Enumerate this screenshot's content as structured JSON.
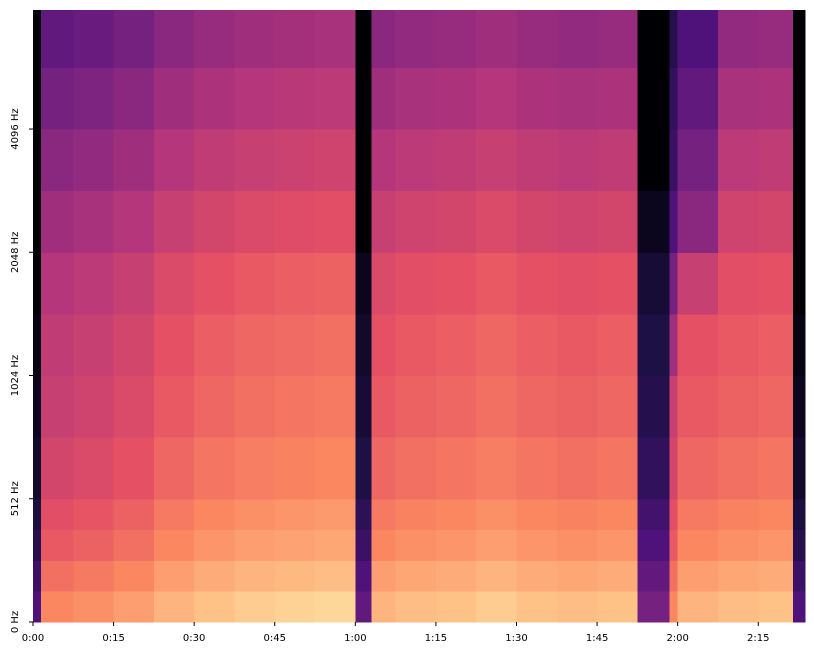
{
  "chart_data": {
    "type": "spectrogram",
    "colormap": "magma",
    "yscale": "symlog",
    "linthresh": 512,
    "xlim": [
      0,
      143.7
    ],
    "ylim": [
      0,
      8000
    ],
    "xticks": [
      {
        "value": 0,
        "label": "0:00"
      },
      {
        "value": 15,
        "label": "0:15"
      },
      {
        "value": 30,
        "label": "0:30"
      },
      {
        "value": 45,
        "label": "0:45"
      },
      {
        "value": 60,
        "label": "1:00"
      },
      {
        "value": 75,
        "label": "1:15"
      },
      {
        "value": 90,
        "label": "1:30"
      },
      {
        "value": 105,
        "label": "1:45"
      },
      {
        "value": 120,
        "label": "2:00"
      },
      {
        "value": 135,
        "label": "2:15"
      }
    ],
    "yticks": [
      {
        "value": 0,
        "label": "0 Hz"
      },
      {
        "value": 512,
        "label": "512 Hz"
      },
      {
        "value": 1024,
        "label": "1024 Hz"
      },
      {
        "value": 2048,
        "label": "2048 Hz"
      },
      {
        "value": 4096,
        "label": "4096 Hz"
      }
    ],
    "time_bins": [
      0,
      1.5,
      7.5,
      15,
      22.5,
      30,
      37.5,
      45,
      52.5,
      60,
      63,
      67.5,
      75,
      82.5,
      90,
      97.5,
      105,
      112.5,
      118.5,
      120,
      127.5,
      135,
      141.5,
      143.7
    ],
    "freq_bins": [
      0,
      128,
      256,
      384,
      512,
      724,
      1024,
      1448,
      2048,
      2896,
      4096,
      5793,
      8000
    ],
    "values": [
      [
        0.25,
        0.75,
        0.77,
        0.8,
        0.85,
        0.88,
        0.9,
        0.91,
        0.92,
        0.3,
        0.85,
        0.87,
        0.88,
        0.9,
        0.88,
        0.87,
        0.88,
        0.35,
        0.75,
        0.85,
        0.87,
        0.88,
        0.25
      ],
      [
        0.2,
        0.7,
        0.72,
        0.75,
        0.8,
        0.83,
        0.85,
        0.86,
        0.87,
        0.25,
        0.8,
        0.82,
        0.83,
        0.85,
        0.83,
        0.82,
        0.83,
        0.3,
        0.7,
        0.8,
        0.82,
        0.83,
        0.2
      ],
      [
        0.15,
        0.65,
        0.67,
        0.7,
        0.75,
        0.78,
        0.8,
        0.81,
        0.82,
        0.2,
        0.75,
        0.77,
        0.78,
        0.8,
        0.78,
        0.77,
        0.78,
        0.25,
        0.65,
        0.75,
        0.77,
        0.78,
        0.15
      ],
      [
        0.12,
        0.62,
        0.64,
        0.67,
        0.72,
        0.75,
        0.77,
        0.78,
        0.79,
        0.17,
        0.72,
        0.74,
        0.75,
        0.77,
        0.75,
        0.74,
        0.75,
        0.22,
        0.62,
        0.72,
        0.74,
        0.75,
        0.12
      ],
      [
        0.08,
        0.58,
        0.6,
        0.63,
        0.68,
        0.71,
        0.73,
        0.74,
        0.75,
        0.13,
        0.68,
        0.7,
        0.71,
        0.73,
        0.71,
        0.7,
        0.71,
        0.18,
        0.58,
        0.68,
        0.7,
        0.71,
        0.08
      ],
      [
        0.05,
        0.55,
        0.57,
        0.6,
        0.65,
        0.68,
        0.7,
        0.71,
        0.72,
        0.1,
        0.65,
        0.67,
        0.68,
        0.7,
        0.68,
        0.67,
        0.68,
        0.15,
        0.55,
        0.65,
        0.67,
        0.68,
        0.05
      ],
      [
        0.03,
        0.53,
        0.55,
        0.58,
        0.63,
        0.66,
        0.68,
        0.69,
        0.7,
        0.08,
        0.63,
        0.65,
        0.66,
        0.68,
        0.66,
        0.65,
        0.66,
        0.13,
        0.45,
        0.63,
        0.65,
        0.66,
        0.03
      ],
      [
        0,
        0.5,
        0.52,
        0.55,
        0.6,
        0.63,
        0.65,
        0.66,
        0.67,
        0.05,
        0.6,
        0.62,
        0.63,
        0.65,
        0.63,
        0.62,
        0.63,
        0.1,
        0.35,
        0.55,
        0.62,
        0.63,
        0
      ],
      [
        0,
        0.45,
        0.47,
        0.5,
        0.55,
        0.58,
        0.6,
        0.61,
        0.62,
        0,
        0.55,
        0.57,
        0.58,
        0.6,
        0.58,
        0.57,
        0.58,
        0.05,
        0.25,
        0.4,
        0.57,
        0.58,
        0
      ],
      [
        0,
        0.4,
        0.42,
        0.45,
        0.5,
        0.53,
        0.55,
        0.56,
        0.57,
        0,
        0.5,
        0.52,
        0.53,
        0.55,
        0.53,
        0.52,
        0.53,
        0,
        0.2,
        0.35,
        0.52,
        0.53,
        0
      ],
      [
        0,
        0.35,
        0.37,
        0.4,
        0.45,
        0.48,
        0.5,
        0.51,
        0.52,
        0,
        0.45,
        0.47,
        0.48,
        0.5,
        0.48,
        0.47,
        0.48,
        0,
        0.18,
        0.3,
        0.47,
        0.48,
        0
      ],
      [
        0,
        0.3,
        0.32,
        0.35,
        0.4,
        0.43,
        0.45,
        0.46,
        0.47,
        0,
        0.4,
        0.42,
        0.43,
        0.45,
        0.43,
        0.42,
        0.43,
        0,
        0.15,
        0.25,
        0.42,
        0.43,
        0
      ]
    ]
  }
}
